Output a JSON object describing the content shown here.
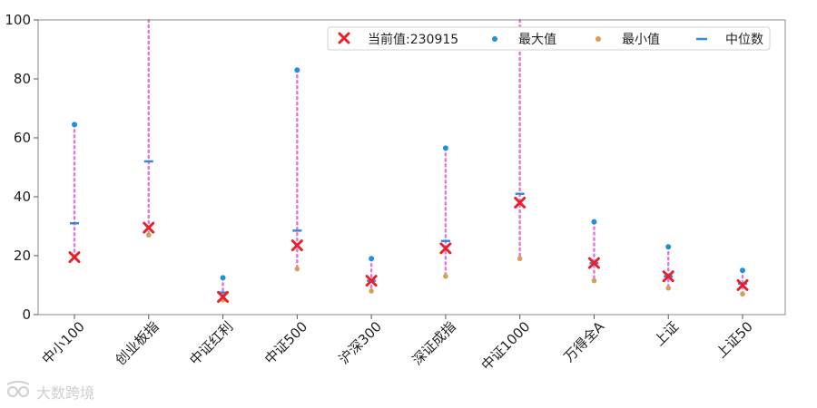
{
  "chart_data": {
    "type": "scatter",
    "categories": [
      "中小100",
      "创业板指",
      "中证红利",
      "中证500",
      "沪深300",
      "深证成指",
      "中证1000",
      "万得全A",
      "上证",
      "上证50"
    ],
    "series": [
      {
        "name": "当前值:230915",
        "marker": "x",
        "color": "#e8202a",
        "values": [
          19.5,
          29.5,
          6.0,
          23.5,
          11.5,
          22.5,
          38.0,
          17.5,
          13.0,
          10.0
        ]
      },
      {
        "name": "最大值",
        "marker": "dot",
        "color": "#1f8fe0",
        "values": [
          64.5,
          100.0,
          12.5,
          83.0,
          19.0,
          56.5,
          100.0,
          31.5,
          23.0,
          15.0
        ]
      },
      {
        "name": "最小值",
        "marker": "dot",
        "color": "#d4a054",
        "values": [
          19.5,
          27.0,
          5.0,
          15.5,
          8.0,
          13.0,
          19.0,
          11.5,
          9.0,
          7.0
        ]
      },
      {
        "name": "中位数",
        "marker": "dash",
        "color": "#3a88d8",
        "values": [
          31.0,
          52.0,
          7.5,
          28.5,
          11.5,
          25.0,
          41.0,
          17.5,
          13.0,
          10.5
        ]
      }
    ],
    "range_line_color": "#e07ad6",
    "ylim": [
      0,
      100
    ],
    "yticks": [
      0,
      20,
      40,
      60,
      80,
      100
    ],
    "grid": false,
    "legend_position": "top-right",
    "legend_layout": "horizontal",
    "xlabel": "",
    "ylabel": "",
    "title": ""
  },
  "watermark": {
    "text": "大数跨境"
  }
}
